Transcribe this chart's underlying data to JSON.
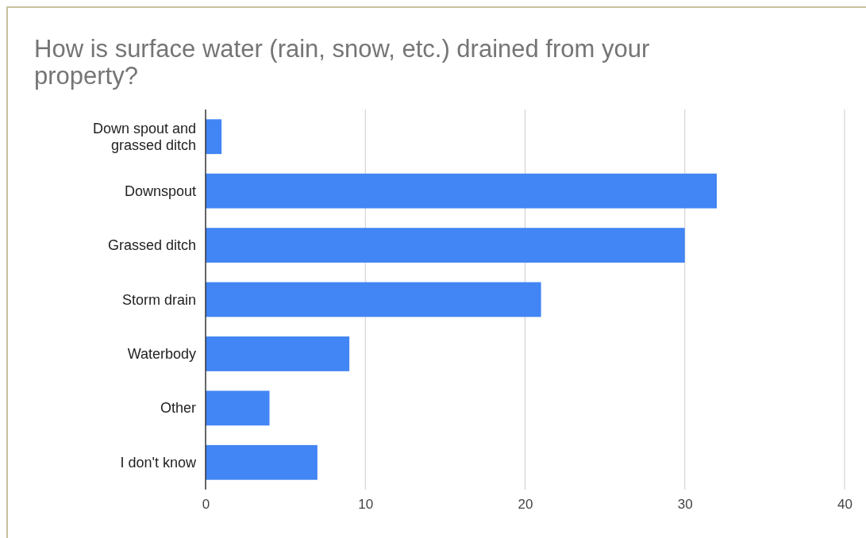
{
  "chart_data": {
    "type": "bar",
    "orientation": "horizontal",
    "title": "How is surface water (rain, snow, etc.) drained from your property?",
    "categories": [
      "Down spout and grassed ditch",
      "Downspout",
      "Grassed ditch",
      "Storm drain",
      "Waterbody",
      "Other",
      "I don't know"
    ],
    "values": [
      1,
      32,
      30,
      21,
      9,
      4,
      7
    ],
    "color": "#4285f4",
    "xlim": [
      0,
      40
    ],
    "xticks": [
      0,
      10,
      20,
      30,
      40
    ],
    "grid": "x"
  }
}
